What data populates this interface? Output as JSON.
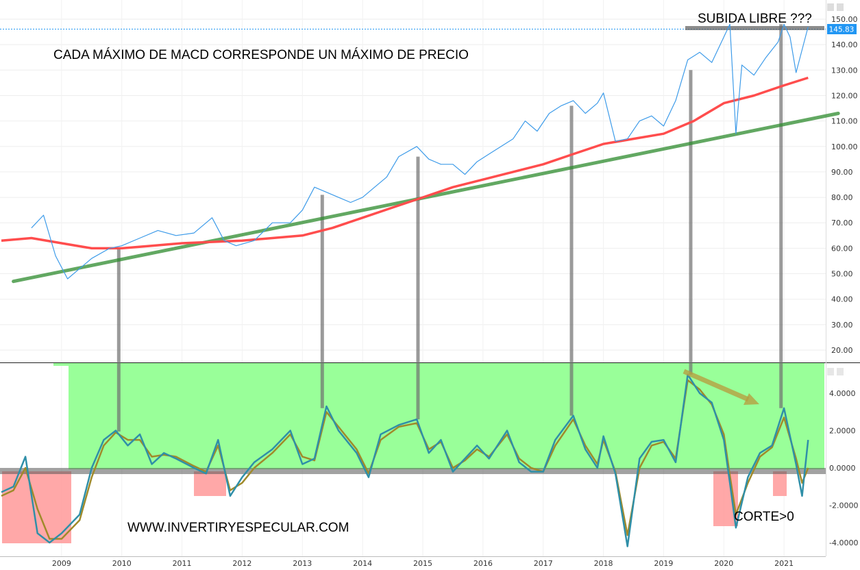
{
  "chart_data": [
    {
      "type": "line",
      "panel": "price",
      "y_ticks": [
        "150.00",
        "140.00",
        "130.00",
        "120.00",
        "110.00",
        "100.00",
        "90.00",
        "80.00",
        "70.00",
        "60.00",
        "50.00",
        "40.00",
        "30.00",
        "20.00"
      ],
      "ylim": [
        13,
        152
      ],
      "last_price_label": "145.83",
      "series": [
        {
          "role": "price",
          "color": "#3d9be9",
          "x": [
            2008.5,
            2008.7,
            2008.9,
            2009.1,
            2009.3,
            2009.5,
            2009.8,
            2010.0,
            2010.3,
            2010.6,
            2010.9,
            2011.2,
            2011.5,
            2011.7,
            2011.9,
            2012.2,
            2012.5,
            2012.8,
            2013.0,
            2013.2,
            2013.4,
            2013.6,
            2013.8,
            2014.0,
            2014.2,
            2014.4,
            2014.6,
            2014.9,
            2015.1,
            2015.3,
            2015.5,
            2015.7,
            2015.9,
            2016.1,
            2016.3,
            2016.5,
            2016.7,
            2016.9,
            2017.1,
            2017.3,
            2017.5,
            2017.7,
            2017.9,
            2018.0,
            2018.2,
            2018.4,
            2018.6,
            2018.8,
            2019.0,
            2019.2,
            2019.4,
            2019.6,
            2019.8,
            2020.0,
            2020.1,
            2020.2,
            2020.3,
            2020.5,
            2020.7,
            2020.9,
            2021.0,
            2021.1,
            2021.2,
            2021.4
          ],
          "values": [
            68,
            73,
            57,
            48,
            52,
            56,
            60,
            61,
            64,
            67,
            65,
            66,
            72,
            63,
            61,
            63,
            70,
            70,
            75,
            84,
            82,
            80,
            78,
            80,
            84,
            88,
            96,
            100,
            95,
            93,
            93,
            89,
            94,
            97,
            100,
            103,
            110,
            106,
            113,
            116,
            118,
            113,
            117,
            121,
            102,
            103,
            110,
            112,
            108,
            118,
            134,
            137,
            133,
            143,
            148,
            105,
            132,
            128,
            135,
            141,
            148,
            143,
            129,
            147
          ]
        },
        {
          "role": "moving-average",
          "color": "#ff4d4d",
          "x": [
            2008.0,
            2008.5,
            2009.0,
            2009.5,
            2010.0,
            2010.5,
            2011.0,
            2011.5,
            2012.0,
            2012.5,
            2013.0,
            2013.5,
            2014.0,
            2014.5,
            2015.0,
            2015.5,
            2016.0,
            2016.5,
            2017.0,
            2017.5,
            2018.0,
            2018.5,
            2019.0,
            2019.5,
            2020.0,
            2020.5,
            2021.0,
            2021.4
          ],
          "values": [
            63,
            64,
            62,
            60,
            60,
            61,
            62,
            62.5,
            63,
            64,
            65,
            68,
            72,
            76,
            80,
            84,
            87,
            90,
            93,
            97,
            101,
            103,
            105,
            110,
            117,
            120,
            124,
            127
          ]
        },
        {
          "role": "trendline",
          "color": "#2e8b2e",
          "x": [
            2008.2,
            2021.9
          ],
          "values": [
            47,
            113
          ]
        }
      ]
    },
    {
      "type": "line",
      "panel": "macd",
      "y_ticks": [
        "4.0000",
        "2.0000",
        "0.0000",
        "-2.0000",
        "-4.0000"
      ],
      "ylim": [
        -4.5,
        5.6
      ],
      "x_ticks": [
        "2009",
        "2010",
        "2011",
        "2012",
        "2013",
        "2014",
        "2015",
        "2016",
        "2017",
        "2018",
        "2019",
        "2020",
        "2021"
      ],
      "series": [
        {
          "role": "macd",
          "color": "#2f8fa8",
          "x": [
            2008.0,
            2008.2,
            2008.4,
            2008.6,
            2008.8,
            2009.0,
            2009.3,
            2009.5,
            2009.7,
            2009.9,
            2010.1,
            2010.3,
            2010.5,
            2010.7,
            2010.9,
            2011.2,
            2011.4,
            2011.6,
            2011.8,
            2012.0,
            2012.2,
            2012.5,
            2012.8,
            2013.0,
            2013.2,
            2013.4,
            2013.6,
            2013.9,
            2014.1,
            2014.3,
            2014.6,
            2014.9,
            2015.1,
            2015.3,
            2015.5,
            2015.7,
            2015.9,
            2016.1,
            2016.4,
            2016.6,
            2016.8,
            2017.0,
            2017.2,
            2017.5,
            2017.7,
            2017.9,
            2018.0,
            2018.2,
            2018.4,
            2018.6,
            2018.8,
            2019.0,
            2019.2,
            2019.4,
            2019.6,
            2019.8,
            2020.0,
            2020.1,
            2020.2,
            2020.4,
            2020.6,
            2020.8,
            2021.0,
            2021.2,
            2021.3,
            2021.4
          ],
          "values": [
            -1.3,
            -1,
            0.6,
            -3.5,
            -4,
            -3.5,
            -2.5,
            0,
            1.5,
            2,
            1.2,
            1.8,
            0.2,
            0.8,
            0.5,
            0,
            -0.3,
            1.5,
            -1.5,
            -0.5,
            0.3,
            1,
            2,
            0.2,
            0.5,
            3.3,
            2,
            0.8,
            -0.5,
            1.8,
            2.3,
            2.6,
            0.8,
            1.5,
            -0.2,
            0.5,
            1.2,
            0.5,
            2,
            0.3,
            -0.2,
            -0.2,
            1.5,
            2.8,
            1,
            0,
            1.7,
            -0.3,
            -4.2,
            0.5,
            1.4,
            1.5,
            0.3,
            5,
            4,
            3.5,
            1.5,
            -0.8,
            -3.2,
            -0.5,
            0.8,
            1.2,
            3.2,
            0.2,
            -1.5,
            1.5
          ]
        },
        {
          "role": "signal",
          "color": "#a08a2a",
          "x": [
            2008.0,
            2008.2,
            2008.4,
            2008.6,
            2008.8,
            2009.0,
            2009.3,
            2009.5,
            2009.7,
            2009.9,
            2010.1,
            2010.3,
            2010.5,
            2010.7,
            2010.9,
            2011.2,
            2011.4,
            2011.6,
            2011.8,
            2012.0,
            2012.2,
            2012.5,
            2012.8,
            2013.0,
            2013.2,
            2013.4,
            2013.6,
            2013.9,
            2014.1,
            2014.3,
            2014.6,
            2014.9,
            2015.1,
            2015.3,
            2015.5,
            2015.7,
            2015.9,
            2016.1,
            2016.4,
            2016.6,
            2016.8,
            2017.0,
            2017.2,
            2017.5,
            2017.7,
            2017.9,
            2018.0,
            2018.2,
            2018.4,
            2018.6,
            2018.8,
            2019.0,
            2019.2,
            2019.4,
            2019.6,
            2019.8,
            2020.0,
            2020.1,
            2020.2,
            2020.4,
            2020.6,
            2020.8,
            2021.0,
            2021.2,
            2021.3,
            2021.4
          ],
          "values": [
            -1.5,
            -1.2,
            0,
            -2.2,
            -3.8,
            -3.8,
            -2.8,
            -0.5,
            1.2,
            1.9,
            1.5,
            1.5,
            0.6,
            0.7,
            0.6,
            0.1,
            -0.2,
            1.2,
            -1.2,
            -0.8,
            0,
            0.8,
            1.8,
            0.6,
            0.4,
            3,
            2.2,
            1,
            -0.3,
            1.5,
            2.2,
            2.4,
            1,
            1.4,
            0,
            0.4,
            1,
            0.6,
            1.8,
            0.5,
            0,
            -0.2,
            1.2,
            2.6,
            1.2,
            0.2,
            1.5,
            -0.2,
            -3.6,
            0,
            1.2,
            1.4,
            0.5,
            4.7,
            4.2,
            3.4,
            1.8,
            -0.4,
            -2.5,
            -0.8,
            0.6,
            1.1,
            2.7,
            0.5,
            -0.8,
            0
          ]
        }
      ]
    }
  ],
  "annotations": {
    "top_left": "CADA MÁXIMO DE MACD CORRESPONDE UN MÁXIMO DE PRECIO",
    "top_right": "SUBIDA LIBRE ???",
    "watermark": "WWW.INVERTIRYESPECULAR.COM",
    "corte": "CORTE>0"
  },
  "colors": {
    "macd_zone_positive": "#99ff99",
    "macd_zone_negative": "#ff9999",
    "connector": "#777777",
    "grid": "#e8e8e8",
    "price_label_bg": "#2196f3"
  }
}
